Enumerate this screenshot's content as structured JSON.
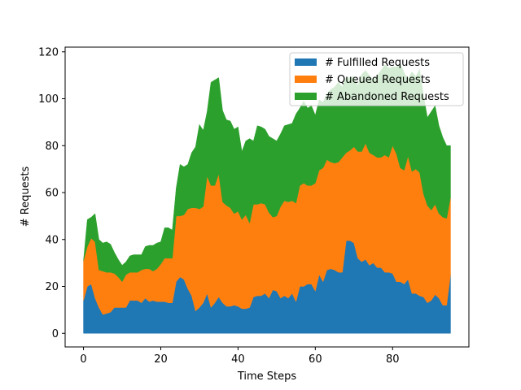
{
  "chart_data": {
    "type": "area",
    "stacked": true,
    "xlabel": "Time Steps",
    "ylabel": "# Requests",
    "xlim": [
      -4.75,
      99.75
    ],
    "ylim": [
      -5.8,
      122
    ],
    "x_ticks": [
      0,
      20,
      40,
      60,
      80
    ],
    "y_ticks": [
      0,
      20,
      40,
      60,
      80,
      100,
      120
    ],
    "grid": false,
    "legend_position": "top-right",
    "x": [
      0,
      1,
      2,
      3,
      4,
      5,
      6,
      7,
      8,
      9,
      10,
      11,
      12,
      13,
      14,
      15,
      16,
      17,
      18,
      19,
      20,
      21,
      22,
      23,
      24,
      25,
      26,
      27,
      28,
      29,
      30,
      31,
      32,
      33,
      34,
      35,
      36,
      37,
      38,
      39,
      40,
      41,
      42,
      43,
      44,
      45,
      46,
      47,
      48,
      49,
      50,
      51,
      52,
      53,
      54,
      55,
      56,
      57,
      58,
      59,
      60,
      61,
      62,
      63,
      64,
      65,
      66,
      67,
      68,
      69,
      70,
      71,
      72,
      73,
      74,
      75,
      76,
      77,
      78,
      79,
      80,
      81,
      82,
      83,
      84,
      85,
      86,
      87,
      88,
      89,
      90,
      91,
      92,
      93,
      94,
      95
    ],
    "series": [
      {
        "name": "# Fulfilled Requests",
        "color": "#1f77b4",
        "values": [
          14,
          20,
          21,
          15,
          11,
          8,
          8.5,
          9,
          11,
          11,
          11,
          11,
          14,
          14,
          14,
          13,
          15,
          13.5,
          14,
          13.5,
          13.5,
          13.5,
          13,
          13,
          22,
          24,
          23,
          19,
          16,
          9.5,
          11,
          13,
          17,
          11,
          13,
          15.5,
          13,
          11.5,
          11.5,
          12,
          11.5,
          10.5,
          10.5,
          11,
          15.5,
          16,
          16,
          17,
          15,
          18.5,
          18,
          15,
          16,
          15,
          17,
          13.5,
          20,
          20,
          21,
          21,
          18,
          25,
          22,
          27,
          27.5,
          27,
          26,
          26,
          39.5,
          39.5,
          38.5,
          32,
          30.5,
          31.5,
          29,
          30,
          28,
          28,
          26,
          26,
          25.5,
          22,
          22,
          21,
          23,
          17,
          17,
          16,
          15.5,
          13,
          14,
          16.5,
          15,
          12,
          12,
          25
        ]
      },
      {
        "name": "# Queued Requests",
        "color": "#ff7f0e",
        "values": [
          17,
          17,
          19.5,
          24,
          16,
          18.5,
          17.5,
          17,
          14.5,
          13,
          11,
          14,
          12,
          12,
          12,
          14,
          12.5,
          14,
          12.5,
          14,
          16,
          18.5,
          19,
          19,
          28,
          26,
          27.5,
          34,
          37.5,
          44,
          42,
          41,
          50,
          52,
          50,
          52.5,
          43,
          43,
          42,
          39,
          40.5,
          38,
          40,
          36,
          39.5,
          39,
          39.5,
          38,
          36.5,
          31,
          32,
          39,
          40.5,
          41,
          39.5,
          42,
          43,
          44,
          42,
          42,
          46,
          44.5,
          48.5,
          47,
          45.5,
          45.5,
          47,
          49,
          37.5,
          38.5,
          41,
          45.5,
          47,
          49.5,
          48,
          46,
          47,
          47,
          50,
          49,
          54.5,
          54.5,
          48.5,
          48.5,
          52.5,
          52,
          53,
          52.5,
          44,
          41.5,
          38.5,
          38.5,
          36,
          37.5,
          37,
          33
        ]
      },
      {
        "name": "# Abandoned Requests",
        "color": "#2ca02c",
        "values": [
          0,
          11.5,
          9,
          12,
          13,
          12,
          13,
          12,
          9,
          7.5,
          7,
          5.5,
          7,
          7.5,
          7.5,
          6.5,
          9.5,
          10,
          11,
          11,
          9.5,
          13,
          13,
          12,
          12,
          22,
          20.5,
          19,
          23.5,
          26,
          36,
          32.5,
          27.5,
          44,
          45,
          41,
          39,
          36.5,
          37,
          36,
          36,
          29,
          31.5,
          36,
          27,
          33.5,
          32.5,
          32,
          32.5,
          33.5,
          32,
          31,
          32,
          33,
          33,
          38,
          33,
          35,
          33,
          34,
          29,
          30,
          28,
          28,
          31,
          32.5,
          34,
          30,
          32,
          31,
          30,
          28,
          33,
          31,
          33,
          32,
          35,
          37,
          38.5,
          38,
          33.5,
          37,
          44.5,
          41.5,
          33,
          42.5,
          39.5,
          44,
          42,
          37.5,
          42,
          42,
          37.5,
          34,
          31,
          22
        ]
      }
    ]
  }
}
